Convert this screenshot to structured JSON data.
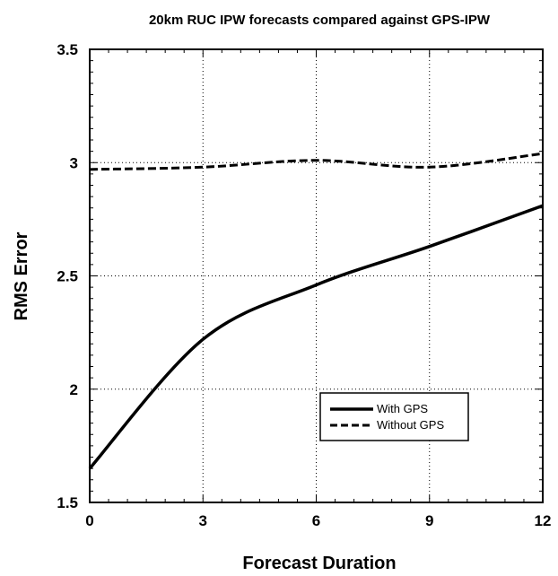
{
  "chart_data": {
    "type": "line",
    "title": "20km RUC IPW forecasts compared against GPS-IPW",
    "xlabel": "Forecast Duration",
    "ylabel": "RMS Error",
    "xlim": [
      0,
      12
    ],
    "ylim": [
      1.5,
      3.5
    ],
    "xticks": [
      0,
      3,
      6,
      9,
      12
    ],
    "yticks": [
      1.5,
      2,
      2.5,
      3,
      3.5
    ],
    "xtick_labels": [
      "0",
      "3",
      "6",
      "9",
      "12"
    ],
    "ytick_labels": [
      "1.5",
      "2",
      "2.5",
      "3",
      "3.5"
    ],
    "grid": true,
    "legend_position": "lower-right",
    "series": [
      {
        "name": "With GPS",
        "style": "solid",
        "color": "#000000",
        "x": [
          0,
          3,
          6,
          9,
          12
        ],
        "y": [
          1.65,
          2.22,
          2.46,
          2.63,
          2.81
        ]
      },
      {
        "name": "Without GPS",
        "style": "dashed",
        "color": "#000000",
        "x": [
          0,
          3,
          6,
          9,
          12
        ],
        "y": [
          2.97,
          2.98,
          3.01,
          2.98,
          3.04
        ]
      }
    ]
  }
}
